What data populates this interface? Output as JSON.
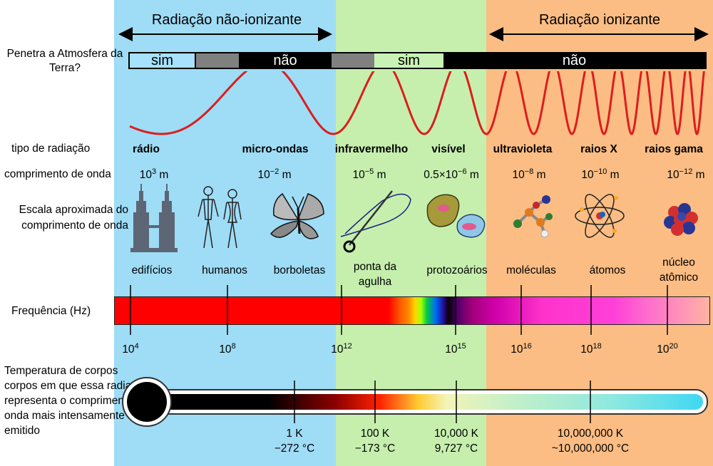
{
  "colors": {
    "nonionizing_bg": "#9fdcf6",
    "visible_bg": "#c6efae",
    "ionizing_bg": "#fbbd84",
    "wave": "#dd1d1d",
    "bar_black": "#000000",
    "bar_gray": "#808080",
    "bar_light_blue": "#a6e2fb",
    "bar_light_green": "#c8f3b4"
  },
  "header": {
    "nonionizing": "Radiação não-ionizante",
    "ionizing": "Radiação ionizante"
  },
  "atmosphere": {
    "label": "Penetra a Atmosfera da Terra?",
    "segments": [
      {
        "text": "sim",
        "color": "light-blue"
      },
      {
        "text": "",
        "color": "gray"
      },
      {
        "text": "não",
        "color": "black"
      },
      {
        "text": "",
        "color": "gray"
      },
      {
        "text": "sim",
        "color": "light-green"
      },
      {
        "text": "não",
        "color": "black"
      }
    ]
  },
  "rows": {
    "radiation_type": "tipo de radiação",
    "wavelength": "comprimento de onda",
    "scale": "Escala aproximada do comprimento de onda",
    "frequency": "Frequência (Hz)",
    "temperature": "Temperatura de corpos corpos em que essa radiação representa o comprimento de onda mais intensamente emitido"
  },
  "radiation_types": [
    "rádio",
    "micro-ondas",
    "infravermelho",
    "visível",
    "ultravioleta",
    "raios X",
    "raios gama"
  ],
  "wavelengths": [
    {
      "base": "10",
      "exp": "3",
      "unit": " m"
    },
    {
      "base": "10",
      "exp": "−2",
      "unit": " m"
    },
    {
      "base": "10",
      "exp": "−5",
      "unit": " m"
    },
    {
      "base": "0.5×10",
      "exp": "−6",
      "unit": " m"
    },
    {
      "base": "10",
      "exp": "−8",
      "unit": " m"
    },
    {
      "base": "10",
      "exp": "−10",
      "unit": " m"
    },
    {
      "base": "10",
      "exp": "−12",
      "unit": " m"
    }
  ],
  "scale_objects": [
    "edifícios",
    "humanos",
    "borboletas",
    "ponta da agulha",
    "protozoários",
    "moléculas",
    "átomos",
    "núcleo atômico"
  ],
  "frequencies": [
    {
      "base": "10",
      "exp": "4"
    },
    {
      "base": "10",
      "exp": "8"
    },
    {
      "base": "10",
      "exp": "12"
    },
    {
      "base": "10",
      "exp": "15"
    },
    {
      "base": "10",
      "exp": "16"
    },
    {
      "base": "10",
      "exp": "18"
    },
    {
      "base": "10",
      "exp": "20"
    }
  ],
  "temperatures": [
    {
      "kelvin": "1 K",
      "celsius": "−272 °C"
    },
    {
      "kelvin": "100 K",
      "celsius": "−173 °C"
    },
    {
      "kelvin": "10,000 K",
      "celsius": "9,727 °C"
    },
    {
      "kelvin": "10,000,000 K",
      "celsius": "~10,000,000 °C"
    }
  ]
}
